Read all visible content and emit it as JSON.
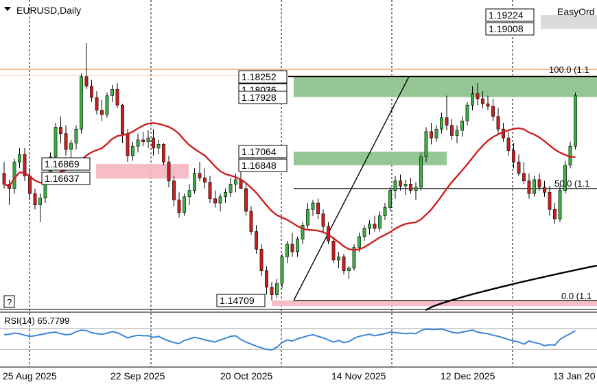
{
  "header": {
    "symbol_label": "EURUSD,Daily",
    "panel_toggle_icon": "triangle-down-icon",
    "easy_order_label": "EasyOrd"
  },
  "help_button_label": "?",
  "colors": {
    "bull": "#3cb043",
    "bear": "#cc1f1f",
    "ma_fast": "#cc1f1f",
    "ma_slow": "#000000",
    "rsi": "#3a85d6",
    "zone_green": "#8fc48f",
    "zone_pink": "#f5b8c4",
    "price_line_top": "#e07a3a",
    "grid": "#000000"
  },
  "chart_data": [
    {
      "type": "candlestick",
      "title": "EURUSD,Daily",
      "timeframe": "Daily",
      "x_tick_labels": [
        "25 Aug 2025",
        "22 Sep 2025",
        "20 Oct 2025",
        "14 Nov 2025",
        "12 Dec 2025",
        "13 Jan 20"
      ],
      "price_labels": [
        "1.19224",
        "1.19008",
        "1.18252",
        "1.18036",
        "1.17928",
        "1.17064",
        "1.16848",
        "1.16869",
        "1.16637",
        "1.14709"
      ],
      "fib_levels": [
        {
          "label": "100.0 (1.1",
          "price": 1.18252
        },
        {
          "label": "50.0 (1.1",
          "price": 1.1648
        },
        {
          "label": "0.0 (1.1",
          "price": 1.14709
        }
      ],
      "zones": [
        {
          "color": "green",
          "top": 1.18252,
          "bottom": 1.17928
        },
        {
          "color": "green",
          "top": 1.17064,
          "bottom": 1.16848
        },
        {
          "color": "pink",
          "top": 1.16869,
          "bottom": 1.16637
        },
        {
          "color": "pink",
          "top": 1.14709,
          "bottom": 1.1462
        },
        {
          "color": "grey",
          "top": 1.19224,
          "bottom": 1.19008
        }
      ],
      "ylim": [
        1.1458,
        1.1955
      ],
      "grid": "vertical dotted",
      "ohlc": [
        [
          1.1672,
          1.169,
          1.1648,
          1.1655
        ],
        [
          1.1655,
          1.1662,
          1.1622,
          1.1648
        ],
        [
          1.1648,
          1.1695,
          1.164,
          1.169
        ],
        [
          1.169,
          1.1712,
          1.168,
          1.1702
        ],
        [
          1.1702,
          1.1712,
          1.166,
          1.1668
        ],
        [
          1.1668,
          1.168,
          1.163,
          1.164
        ],
        [
          1.164,
          1.1648,
          1.1615,
          1.1622
        ],
        [
          1.1622,
          1.164,
          1.1595,
          1.1633
        ],
        [
          1.1633,
          1.167,
          1.1625,
          1.1662
        ],
        [
          1.1662,
          1.1705,
          1.1655,
          1.1698
        ],
        [
          1.1698,
          1.1752,
          1.169,
          1.1745
        ],
        [
          1.1745,
          1.1762,
          1.172,
          1.1735
        ],
        [
          1.1735,
          1.1748,
          1.17,
          1.171
        ],
        [
          1.171,
          1.1725,
          1.169,
          1.172
        ],
        [
          1.172,
          1.1748,
          1.171,
          1.1742
        ],
        [
          1.1742,
          1.183,
          1.1735,
          1.1825
        ],
        [
          1.1825,
          1.1878,
          1.1805,
          1.181
        ],
        [
          1.181,
          1.182,
          1.1785,
          1.1792
        ],
        [
          1.1792,
          1.1802,
          1.1765,
          1.1772
        ],
        [
          1.1772,
          1.1788,
          1.1755,
          1.1765
        ],
        [
          1.1765,
          1.18,
          1.176,
          1.1795
        ],
        [
          1.1795,
          1.1812,
          1.1785,
          1.1805
        ],
        [
          1.1805,
          1.1815,
          1.1775,
          1.178
        ],
        [
          1.178,
          1.1782,
          1.172,
          1.1735
        ],
        [
          1.1735,
          1.1742,
          1.169,
          1.17
        ],
        [
          1.17,
          1.1722,
          1.1692,
          1.1715
        ],
        [
          1.1715,
          1.1735,
          1.1705,
          1.1725
        ],
        [
          1.1725,
          1.1738,
          1.1715,
          1.1722
        ],
        [
          1.1722,
          1.174,
          1.1712,
          1.1728
        ],
        [
          1.1728,
          1.1742,
          1.17,
          1.1712
        ],
        [
          1.1712,
          1.1725,
          1.1702,
          1.1718
        ],
        [
          1.1718,
          1.172,
          1.1685,
          1.169
        ],
        [
          1.169,
          1.17,
          1.165,
          1.166
        ],
        [
          1.166,
          1.1668,
          1.162,
          1.163
        ],
        [
          1.163,
          1.1642,
          1.1602,
          1.161
        ],
        [
          1.161,
          1.164,
          1.1605,
          1.1635
        ],
        [
          1.1635,
          1.1655,
          1.1622,
          1.1645
        ],
        [
          1.1645,
          1.168,
          1.164,
          1.1672
        ],
        [
          1.1672,
          1.169,
          1.166,
          1.1665
        ],
        [
          1.1665,
          1.168,
          1.1648,
          1.1658
        ],
        [
          1.1658,
          1.1668,
          1.1625,
          1.1632
        ],
        [
          1.1632,
          1.1645,
          1.1618,
          1.1625
        ],
        [
          1.1625,
          1.164,
          1.1612,
          1.1635
        ],
        [
          1.1635,
          1.1648,
          1.1625,
          1.1642
        ],
        [
          1.1642,
          1.1665,
          1.1635,
          1.1655
        ],
        [
          1.1655,
          1.1672,
          1.1642,
          1.1662
        ],
        [
          1.1662,
          1.168,
          1.165,
          1.1648
        ],
        [
          1.1648,
          1.1655,
          1.1605,
          1.1612
        ],
        [
          1.1612,
          1.162,
          1.1575,
          1.158
        ],
        [
          1.158,
          1.159,
          1.1545,
          1.1552
        ],
        [
          1.1552,
          1.156,
          1.151,
          1.1518
        ],
        [
          1.1518,
          1.1525,
          1.148,
          1.1492
        ],
        [
          1.1492,
          1.15,
          1.1471,
          1.148
        ],
        [
          1.148,
          1.1505,
          1.1475,
          1.1498
        ],
        [
          1.1498,
          1.1545,
          1.149,
          1.154
        ],
        [
          1.154,
          1.1565,
          1.153,
          1.156
        ],
        [
          1.156,
          1.1578,
          1.154,
          1.1548
        ],
        [
          1.1548,
          1.1572,
          1.154,
          1.1568
        ],
        [
          1.1568,
          1.1595,
          1.156,
          1.159
        ],
        [
          1.159,
          1.1625,
          1.1585,
          1.1615
        ],
        [
          1.1615,
          1.163,
          1.1605,
          1.1625
        ],
        [
          1.1625,
          1.1632,
          1.16,
          1.1608
        ],
        [
          1.1608,
          1.1615,
          1.158,
          1.1588
        ],
        [
          1.1588,
          1.1595,
          1.156,
          1.1565
        ],
        [
          1.1565,
          1.1572,
          1.153,
          1.1535
        ],
        [
          1.1535,
          1.1548,
          1.1522,
          1.154
        ],
        [
          1.154,
          1.1545,
          1.1512,
          1.1518
        ],
        [
          1.1518,
          1.1525,
          1.1505,
          1.1522
        ],
        [
          1.1522,
          1.156,
          1.1518,
          1.1555
        ],
        [
          1.1555,
          1.1578,
          1.1548,
          1.1572
        ],
        [
          1.1572,
          1.159,
          1.1565,
          1.1585
        ],
        [
          1.1585,
          1.1598,
          1.1575,
          1.1592
        ],
        [
          1.1592,
          1.1605,
          1.158,
          1.1585
        ],
        [
          1.1585,
          1.1612,
          1.158,
          1.1605
        ],
        [
          1.1605,
          1.1625,
          1.1598,
          1.1618
        ],
        [
          1.1618,
          1.165,
          1.1612,
          1.1645
        ],
        [
          1.1645,
          1.1668,
          1.1632,
          1.166
        ],
        [
          1.166,
          1.167,
          1.1645,
          1.1652
        ],
        [
          1.1652,
          1.1662,
          1.1638,
          1.1655
        ],
        [
          1.1655,
          1.1665,
          1.164,
          1.1645
        ],
        [
          1.1645,
          1.1658,
          1.163,
          1.165
        ],
        [
          1.165,
          1.1705,
          1.1645,
          1.1698
        ],
        [
          1.1698,
          1.1745,
          1.169,
          1.1738
        ],
        [
          1.1738,
          1.1752,
          1.1718,
          1.1728
        ],
        [
          1.1728,
          1.1748,
          1.1722,
          1.1742
        ],
        [
          1.1742,
          1.1768,
          1.1735,
          1.176
        ],
        [
          1.176,
          1.1795,
          1.174,
          1.1748
        ],
        [
          1.1748,
          1.1758,
          1.1725,
          1.1732
        ],
        [
          1.1732,
          1.1748,
          1.172,
          1.174
        ],
        [
          1.174,
          1.1762,
          1.173,
          1.1755
        ],
        [
          1.1755,
          1.1785,
          1.1748,
          1.178
        ],
        [
          1.178,
          1.181,
          1.1772,
          1.1798
        ],
        [
          1.1798,
          1.1815,
          1.178,
          1.179
        ],
        [
          1.179,
          1.1802,
          1.1775,
          1.1782
        ],
        [
          1.1782,
          1.1795,
          1.1772,
          1.1778
        ],
        [
          1.1778,
          1.179,
          1.1755,
          1.1762
        ],
        [
          1.1762,
          1.1775,
          1.1735,
          1.1742
        ],
        [
          1.1742,
          1.1752,
          1.1722,
          1.1728
        ],
        [
          1.1728,
          1.1738,
          1.17,
          1.1708
        ],
        [
          1.1708,
          1.172,
          1.168,
          1.169
        ],
        [
          1.169,
          1.1702,
          1.1668,
          1.1672
        ],
        [
          1.1672,
          1.169,
          1.1655,
          1.166
        ],
        [
          1.166,
          1.1672,
          1.1632,
          1.164
        ],
        [
          1.164,
          1.1668,
          1.1635,
          1.1662
        ],
        [
          1.1662,
          1.1672,
          1.1645,
          1.165
        ],
        [
          1.165,
          1.166,
          1.1635,
          1.1642
        ],
        [
          1.1642,
          1.1652,
          1.1605,
          1.1615
        ],
        [
          1.1615,
          1.1625,
          1.1592,
          1.16
        ],
        [
          1.16,
          1.1652,
          1.1595,
          1.1645
        ],
        [
          1.1645,
          1.1692,
          1.164,
          1.1685
        ],
        [
          1.1685,
          1.1722,
          1.168,
          1.1715
        ],
        [
          1.1715,
          1.18,
          1.171,
          1.1795
        ]
      ]
    },
    {
      "type": "line",
      "title": "RSI(14) 65.7799",
      "indicator": "RSI",
      "period": 14,
      "last_value": 65.7799,
      "ylim": [
        0,
        100
      ],
      "levels": [
        70,
        30
      ],
      "values": [
        58,
        59,
        61,
        60,
        57,
        55,
        56,
        58,
        60,
        62,
        63,
        60,
        58,
        59,
        64,
        67,
        66,
        62,
        60,
        59,
        61,
        64,
        62,
        57,
        52,
        55,
        57,
        56,
        56,
        53,
        55,
        50,
        46,
        43,
        41,
        47,
        50,
        53,
        51,
        48,
        46,
        44,
        48,
        51,
        55,
        56,
        49,
        44,
        40,
        36,
        33,
        30,
        29,
        34,
        43,
        48,
        46,
        50,
        53,
        56,
        58,
        55,
        52,
        48,
        44,
        47,
        43,
        45,
        51,
        55,
        57,
        59,
        56,
        58,
        60,
        63,
        62,
        61,
        60,
        61,
        60,
        66,
        69,
        68,
        68,
        69,
        66,
        63,
        61,
        63,
        65,
        67,
        63,
        61,
        60,
        57,
        55,
        52,
        49,
        46,
        44,
        40,
        46,
        43,
        41,
        37,
        39,
        38,
        49,
        55,
        60,
        66
      ]
    }
  ]
}
